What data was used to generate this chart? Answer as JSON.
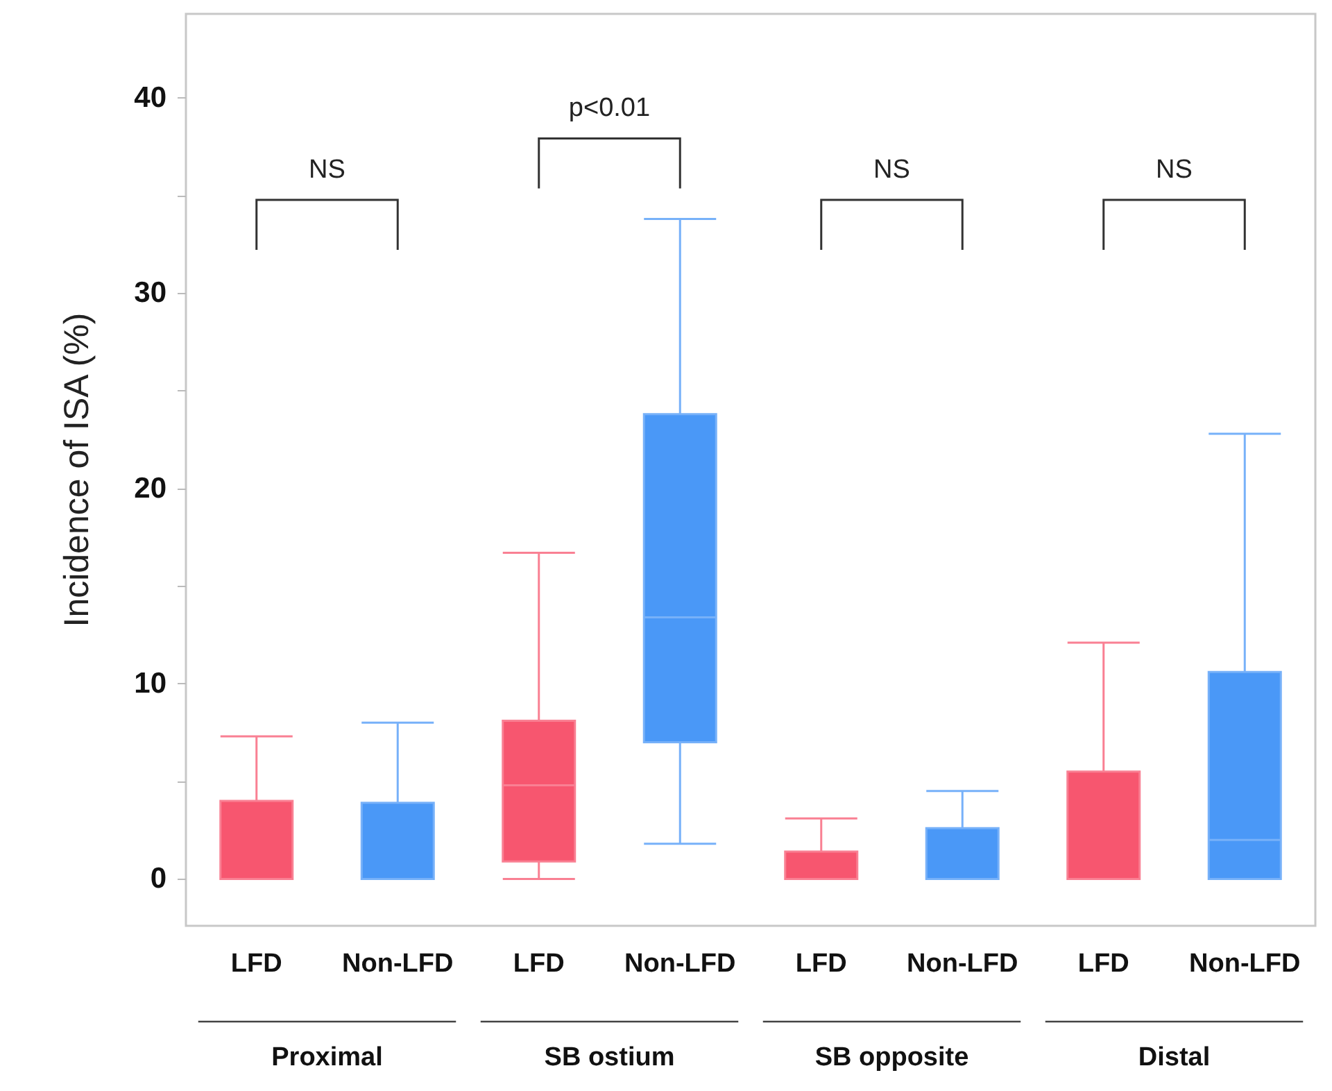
{
  "chart_data": {
    "type": "box",
    "ylabel": "Incidence of ISA (%)",
    "categories": [
      "LFD",
      "Non-LFD",
      "LFD",
      "Non-LFD",
      "LFD",
      "Non-LFD",
      "LFD",
      "Non-LFD"
    ],
    "colors": [
      "#f7566f",
      "#4a98f7",
      "#f7566f",
      "#4a98f7",
      "#f7566f",
      "#4a98f7",
      "#f7566f",
      "#4a98f7"
    ],
    "boxes": [
      {
        "low": 0,
        "q1": 0,
        "median": 0,
        "q3": 4.0,
        "high": 7.3
      },
      {
        "low": 0,
        "q1": 0,
        "median": 0,
        "q3": 3.9,
        "high": 8.0
      },
      {
        "low": 0,
        "q1": 0.9,
        "median": 4.8,
        "q3": 8.1,
        "high": 16.7
      },
      {
        "low": 1.8,
        "q1": 7.0,
        "median": 13.4,
        "q3": 23.8,
        "high": 33.8
      },
      {
        "low": 0,
        "q1": 0,
        "median": 0,
        "q3": 1.4,
        "high": 3.1
      },
      {
        "low": 0,
        "q1": 0,
        "median": 0,
        "q3": 2.6,
        "high": 4.5
      },
      {
        "low": 0,
        "q1": 0,
        "median": 0,
        "q3": 5.5,
        "high": 12.1
      },
      {
        "low": 0,
        "q1": 0,
        "median": 2.0,
        "q3": 10.6,
        "high": 22.8
      }
    ],
    "ylim": [
      -2.4,
      44.3
    ],
    "yticks": [
      0,
      {
        "value": 5,
        "label": null
      },
      10,
      {
        "value": 15,
        "label": null
      },
      20,
      {
        "value": 25,
        "label": null
      },
      30,
      {
        "value": 35,
        "label": null
      },
      40
    ],
    "grid": false,
    "annotations": [
      "NS",
      "p<0.01",
      "NS",
      "NS",
      "Proximal",
      "SB ostium",
      "SB opposite",
      "Distal"
    ]
  }
}
